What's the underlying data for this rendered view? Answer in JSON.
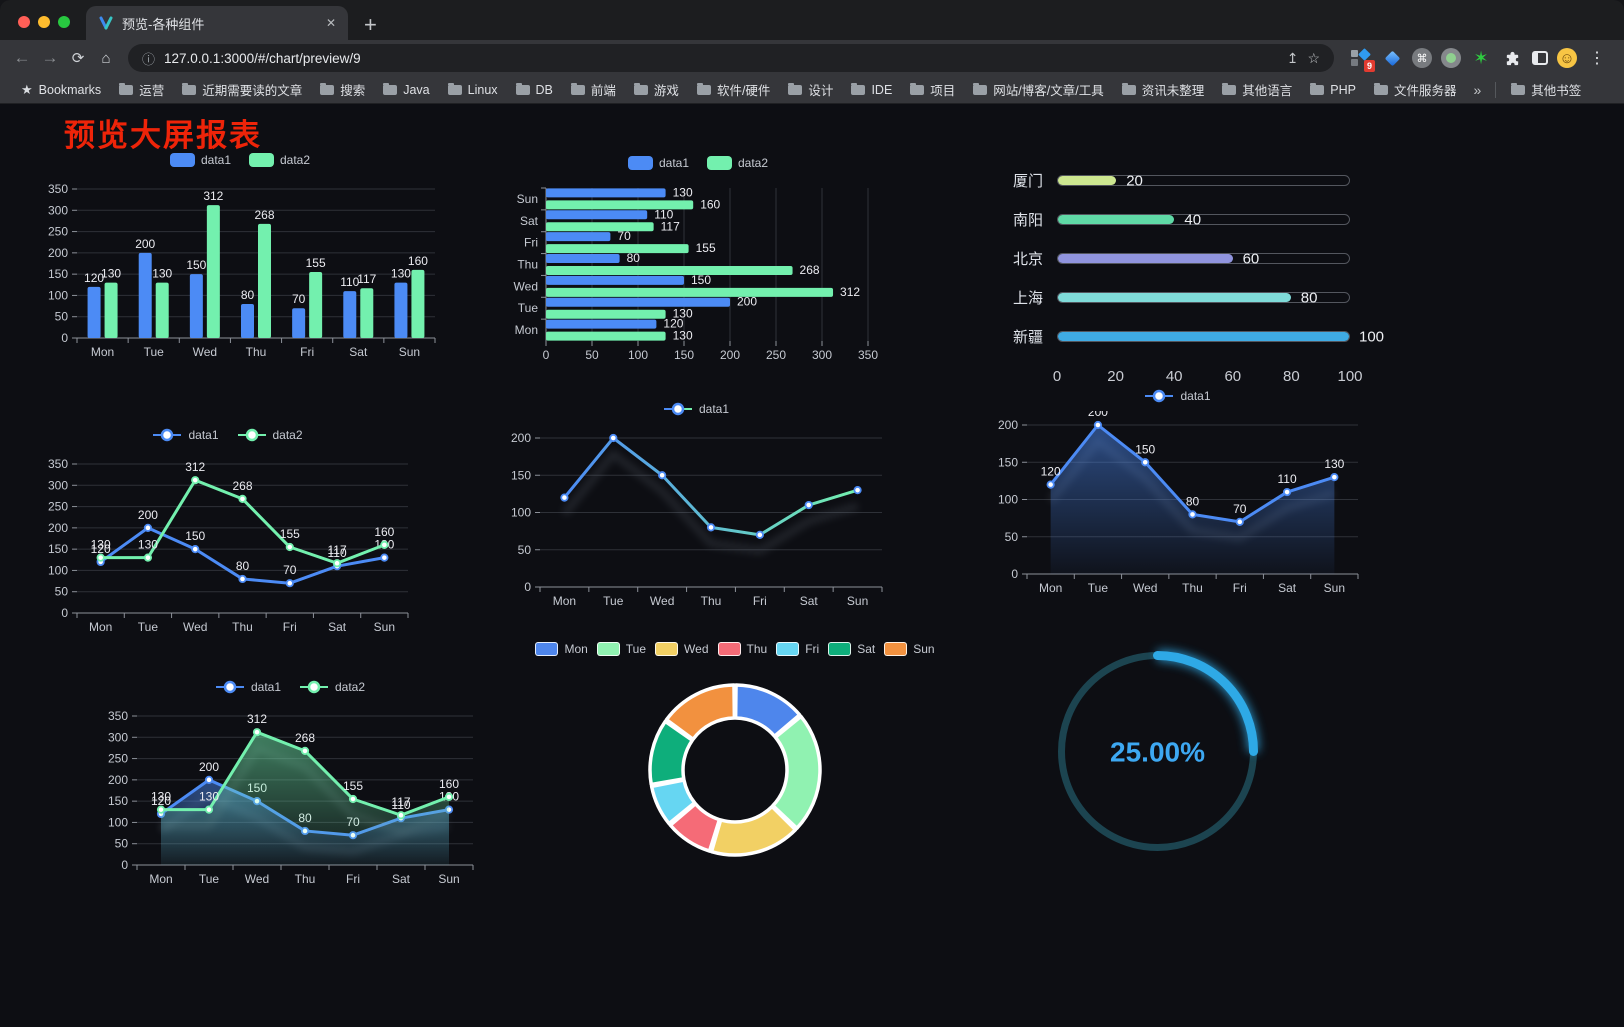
{
  "browser": {
    "tab": {
      "title": "预览-各种组件"
    },
    "url": "127.0.0.1:3000/#/chart/preview/9",
    "bookmarks_label": "Bookmarks",
    "bookmarks": [
      "运营",
      "近期需要读的文章",
      "搜索",
      "Java",
      "Linux",
      "DB",
      "前端",
      "游戏",
      "软件/硬件",
      "设计",
      "IDE",
      "项目",
      "网站/博客/文章/工具",
      "资讯未整理",
      "其他语言",
      "PHP",
      "文件服务器"
    ],
    "other_bookmarks_label": "其他书签",
    "extension_badge": "9",
    "icons": {
      "close": "✕",
      "new_tab": "+",
      "back": "←",
      "forward": "→",
      "reload": "⟳",
      "home": "⌂",
      "info": "ⓘ",
      "share": "↥",
      "star": "☆",
      "menu": "⋮",
      "overflow": "»",
      "bookmarks_star": "★",
      "command": "⌘",
      "green_star": "✶",
      "smile": "☺"
    }
  },
  "page": {
    "title": "预览大屏报表",
    "title_color": "#ee2409",
    "background": "#0d0e13"
  },
  "chart_data": [
    {
      "id": "grouped-bar-vertical",
      "type": "bar",
      "title": "",
      "xlabel": "",
      "ylabel": "",
      "categories": [
        "Mon",
        "Tue",
        "Wed",
        "Thu",
        "Fri",
        "Sat",
        "Sun"
      ],
      "series": [
        {
          "name": "data1",
          "color": "#4C8BF5",
          "values": [
            120,
            200,
            150,
            80,
            70,
            110,
            130
          ]
        },
        {
          "name": "data2",
          "color": "#73F0AE",
          "values": [
            130,
            130,
            312,
            268,
            155,
            117,
            160
          ]
        }
      ],
      "ylim": [
        0,
        350
      ],
      "ytick_step": 50,
      "legend": "rect",
      "show_labels": true,
      "grid": true
    },
    {
      "id": "grouped-bar-horizontal",
      "type": "bar-horizontal",
      "title": "",
      "categories": [
        "Mon",
        "Tue",
        "Wed",
        "Thu",
        "Fri",
        "Sat",
        "Sun"
      ],
      "series": [
        {
          "name": "data1",
          "color": "#4C8BF5",
          "values": [
            120,
            200,
            150,
            80,
            70,
            110,
            130
          ]
        },
        {
          "name": "data2",
          "color": "#73F0AE",
          "values": [
            130,
            130,
            312,
            268,
            155,
            117,
            160
          ]
        }
      ],
      "xlim": [
        0,
        350
      ],
      "xtick_step": 50,
      "legend": "rect",
      "show_labels": true,
      "grid": true
    },
    {
      "id": "city-progress",
      "type": "progress",
      "max": 100,
      "xticks": [
        0,
        20,
        40,
        60,
        80,
        100
      ],
      "items": [
        {
          "label": "厦门",
          "value": 20,
          "color": "#CDE790"
        },
        {
          "label": "南阳",
          "value": 40,
          "color": "#5FD9A6"
        },
        {
          "label": "北京",
          "value": 60,
          "color": "#9094DE"
        },
        {
          "label": "上海",
          "value": 80,
          "color": "#7FDBD9"
        },
        {
          "label": "新疆",
          "value": 100,
          "color": "#3FABE4"
        }
      ]
    },
    {
      "id": "line-two-series",
      "type": "line",
      "title": "",
      "categories": [
        "Mon",
        "Tue",
        "Wed",
        "Thu",
        "Fri",
        "Sat",
        "Sun"
      ],
      "series": [
        {
          "name": "data1",
          "color": "#4C8BF5",
          "values": [
            120,
            200,
            150,
            80,
            70,
            110,
            130
          ]
        },
        {
          "name": "data2",
          "color": "#73F0AE",
          "values": [
            130,
            130,
            312,
            268,
            155,
            117,
            160
          ]
        }
      ],
      "ylim": [
        0,
        350
      ],
      "ytick_step": 50,
      "legend": "line",
      "show_labels": true,
      "grid": true
    },
    {
      "id": "line-gradient",
      "type": "line",
      "title": "",
      "categories": [
        "Mon",
        "Tue",
        "Wed",
        "Thu",
        "Fri",
        "Sat",
        "Sun"
      ],
      "series": [
        {
          "name": "data1",
          "gradient": [
            "#4C8BF5",
            "#73F0AE"
          ],
          "shadow": true,
          "values": [
            120,
            200,
            150,
            80,
            70,
            110,
            130
          ]
        }
      ],
      "ylim": [
        0,
        200
      ],
      "ytick_step": 50,
      "legend": "line",
      "show_labels": false,
      "grid": true
    },
    {
      "id": "area-single",
      "type": "line",
      "title": "",
      "categories": [
        "Mon",
        "Tue",
        "Wed",
        "Thu",
        "Fri",
        "Sat",
        "Sun"
      ],
      "series": [
        {
          "name": "data1",
          "color": "#4C8BF5",
          "area": true,
          "shadow": true,
          "values": [
            120,
            200,
            150,
            80,
            70,
            110,
            130
          ]
        }
      ],
      "ylim": [
        0,
        200
      ],
      "ytick_step": 50,
      "legend": "line",
      "show_labels": true,
      "grid": true
    },
    {
      "id": "area-two-series",
      "type": "line",
      "title": "",
      "categories": [
        "Mon",
        "Tue",
        "Wed",
        "Thu",
        "Fri",
        "Sat",
        "Sun"
      ],
      "series": [
        {
          "name": "data1",
          "color": "#4C8BF5",
          "area": true,
          "shadow": true,
          "values": [
            120,
            200,
            150,
            80,
            70,
            110,
            130
          ]
        },
        {
          "name": "data2",
          "color": "#73F0AE",
          "area": true,
          "shadow": true,
          "values": [
            130,
            130,
            312,
            268,
            155,
            117,
            160
          ]
        }
      ],
      "ylim": [
        0,
        350
      ],
      "ytick_step": 50,
      "legend": "line",
      "show_labels": true,
      "grid": true
    },
    {
      "id": "week-donut",
      "type": "pie",
      "legend": "pie",
      "title": "",
      "items": [
        {
          "label": "Mon",
          "value": 120,
          "color": "#4E86EC"
        },
        {
          "label": "Tue",
          "value": 200,
          "color": "#90F2B1"
        },
        {
          "label": "Wed",
          "value": 150,
          "color": "#F2D064"
        },
        {
          "label": "Thu",
          "value": 80,
          "color": "#F56B77"
        },
        {
          "label": "Fri",
          "value": 70,
          "color": "#66D6F2"
        },
        {
          "label": "Sat",
          "value": 110,
          "color": "#0EAE7B"
        },
        {
          "label": "Sun",
          "value": 130,
          "color": "#F2913F"
        }
      ]
    },
    {
      "id": "percent-gauge",
      "type": "gauge",
      "value": 25,
      "label": "25.00%",
      "color": "#2EA9E6",
      "track": "#1C4450",
      "text_color": "#3DA8F2"
    }
  ]
}
